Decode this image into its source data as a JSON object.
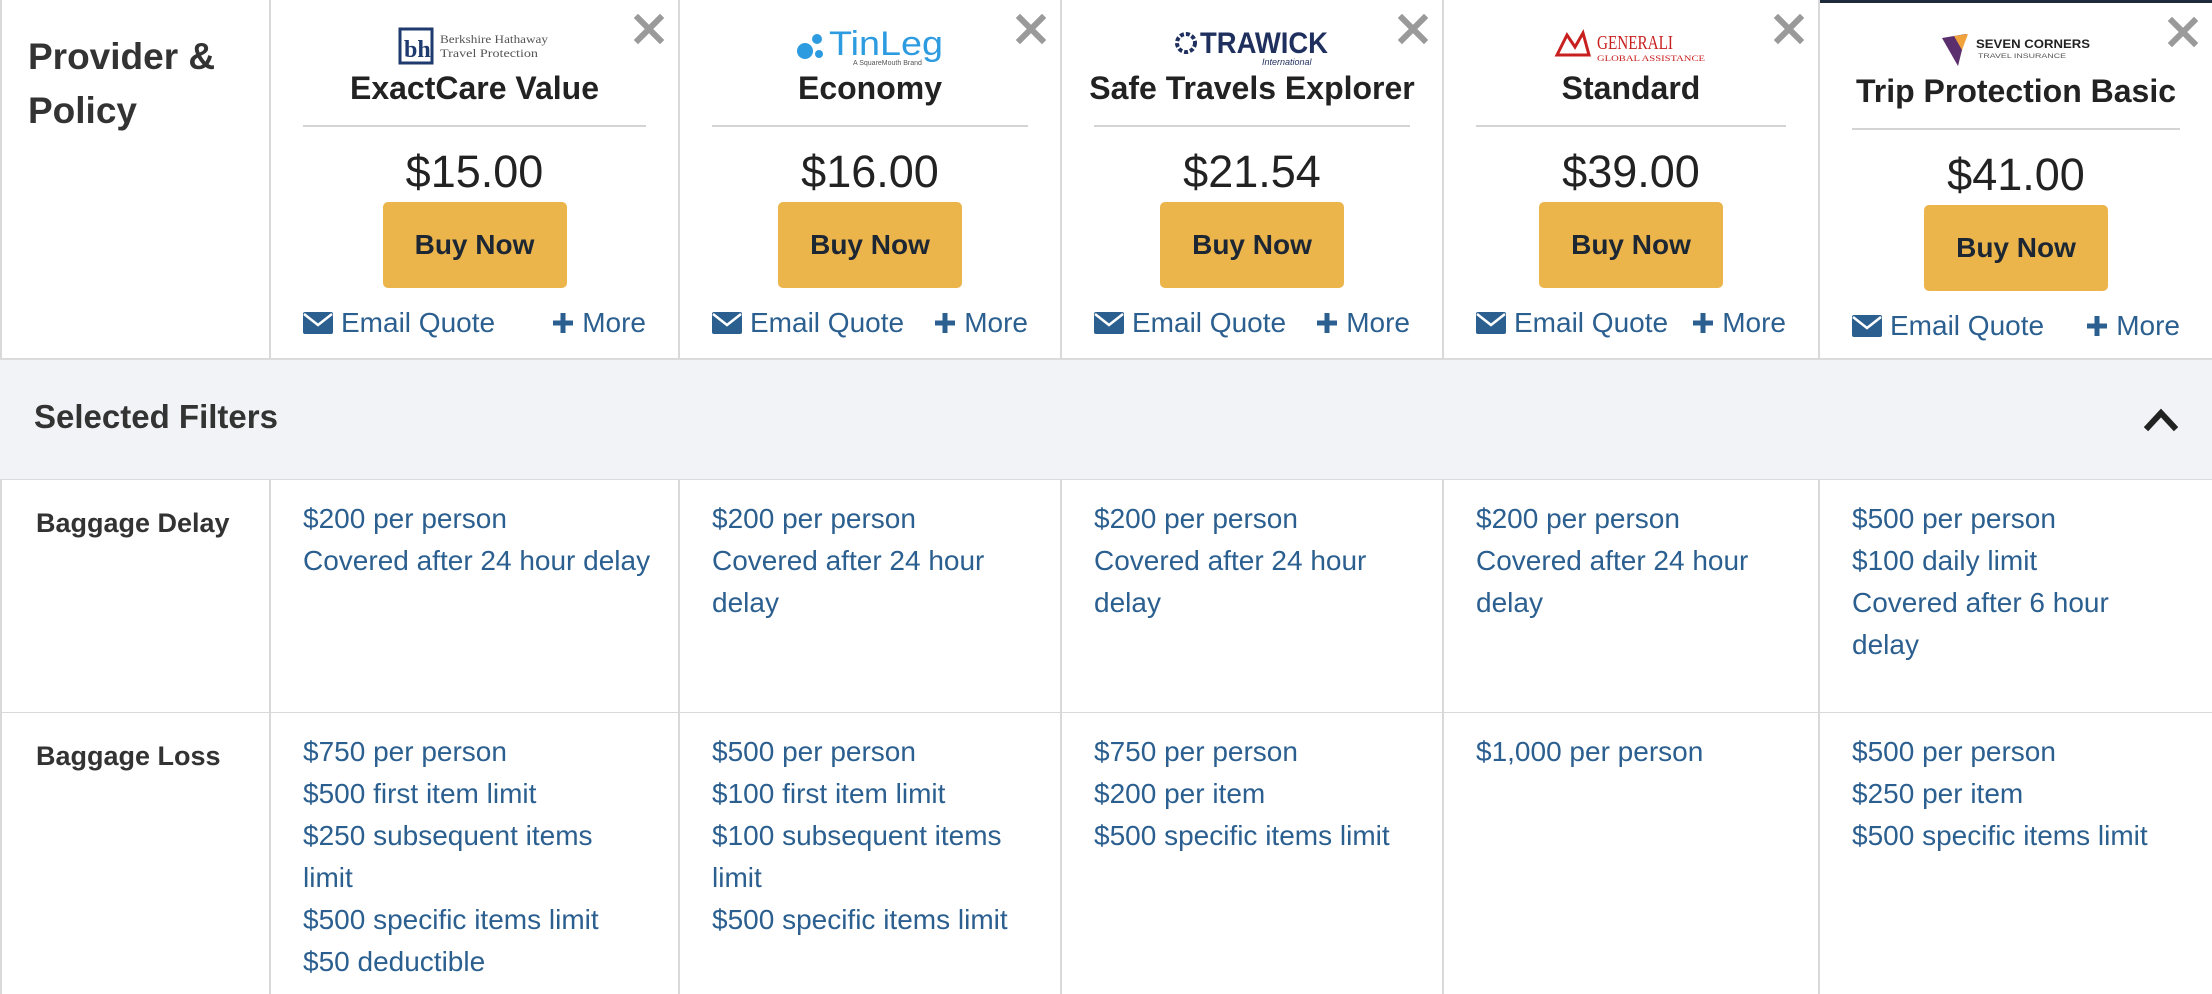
{
  "header": {
    "label": "Provider & Policy"
  },
  "plans": [
    {
      "logo_text": "Berkshire Hathaway Travel Protection",
      "logo_mark": "bh",
      "name": "ExactCare Value",
      "price": "$15.00",
      "buy_label": "Buy Now",
      "email_label": "Email Quote",
      "more_label": "More"
    },
    {
      "logo_text": "TinLeg",
      "logo_mark": "A SquareMouth Brand",
      "name": "Economy",
      "price": "$16.00",
      "buy_label": "Buy Now",
      "email_label": "Email Quote",
      "more_label": "More"
    },
    {
      "logo_text": "TRAWICK",
      "logo_mark": "International",
      "name": "Safe Travels Explorer",
      "price": "$21.54",
      "buy_label": "Buy Now",
      "email_label": "Email Quote",
      "more_label": "More"
    },
    {
      "logo_text": "GENERALI",
      "logo_mark": "GLOBAL ASSISTANCE",
      "name": "Standard",
      "price": "$39.00",
      "buy_label": "Buy Now",
      "email_label": "Email Quote",
      "more_label": "More"
    },
    {
      "logo_text": "SEVEN CORNERS",
      "logo_mark": "TRAVEL INSURANCE",
      "name": "Trip Protection Basic",
      "price": "$41.00",
      "buy_label": "Buy Now",
      "email_label": "Email Quote",
      "more_label": "More"
    }
  ],
  "filters": {
    "title": "Selected Filters"
  },
  "coverage_rows": [
    {
      "label": "Baggage Delay",
      "cells": [
        [
          "$200 per person",
          "Covered after 24 hour delay"
        ],
        [
          "$200 per person",
          "Covered after 24 hour",
          "delay"
        ],
        [
          "$200 per person",
          "Covered after 24 hour",
          "delay"
        ],
        [
          "$200 per person",
          "Covered after 24 hour",
          "delay"
        ],
        [
          "$500 per person",
          "$100 daily limit",
          "Covered after 6 hour",
          "delay"
        ]
      ]
    },
    {
      "label": "Baggage Loss",
      "cells": [
        [
          "$750 per person",
          "$500 first item limit",
          "$250 subsequent items",
          "limit",
          "$500 specific items limit",
          "$50 deductible"
        ],
        [
          "$500 per person",
          "$100 first item limit",
          "$100 subsequent items",
          "limit",
          "$500 specific items limit"
        ],
        [
          "$750 per person",
          "$200 per item",
          "$500 specific items limit"
        ],
        [
          "$1,000 per person"
        ],
        [
          "$500 per person",
          "$250 per item",
          "$500 specific items limit"
        ]
      ]
    }
  ],
  "colors": {
    "link": "#2b5f8f",
    "buy_button": "#ecb54c",
    "filter_bar_bg": "#f2f3f6",
    "grid_border": "#d9d9d9"
  }
}
